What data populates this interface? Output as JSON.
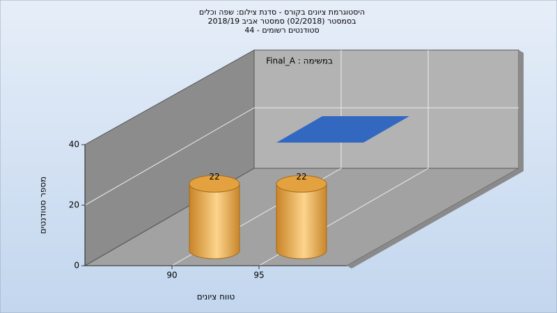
{
  "chart_data": {
    "type": "bar3d",
    "title": [
      "היסטוגרמת ציונים בקורס - סדנת צילום: שפה וכלים",
      "בסמסטר  (02/2018)  סמסטר אביב 2018/19",
      "סטודנטים רשומים - 44"
    ],
    "xlabel": "טווח ציונים",
    "ylabel": "מספר סטודנטים",
    "categories": [
      "90",
      "95"
    ],
    "series": [
      {
        "name": "במשימה : Final_A",
        "color": "#e3a23f",
        "legend_color": "#3368c0",
        "values": [
          22,
          22
        ]
      }
    ],
    "ylim": [
      0,
      40
    ],
    "yticks": [
      0,
      20,
      40
    ],
    "grid": true
  }
}
